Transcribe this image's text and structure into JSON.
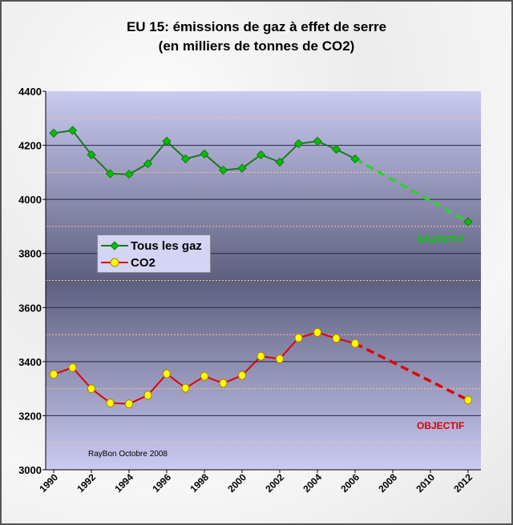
{
  "chart_data": {
    "type": "line",
    "title": "EU 15: émissions de gaz à effet de serre",
    "subtitle": "(en milliers de tonnes de CO2)",
    "ylim": [
      3000,
      4400
    ],
    "yticks": [
      3000,
      3200,
      3400,
      3600,
      3800,
      4000,
      4200,
      4400
    ],
    "xlim": [
      1990,
      2012
    ],
    "xticks": [
      1990,
      1992,
      1994,
      1996,
      1998,
      2000,
      2002,
      2004,
      2006,
      2008,
      2010,
      2012
    ],
    "series": [
      {
        "name": "Tous les gaz",
        "color": "#00c000",
        "line_color": "#1a7a1a",
        "x": [
          1990,
          1991,
          1992,
          1993,
          1994,
          1995,
          1996,
          1997,
          1998,
          1999,
          2000,
          2001,
          2002,
          2003,
          2004,
          2005,
          2006
        ],
        "values": [
          4245,
          4255,
          4165,
          4095,
          4093,
          4132,
          4215,
          4150,
          4168,
          4108,
          4115,
          4165,
          4138,
          4206,
          4215,
          4185,
          4150
        ],
        "target": {
          "x": 2012,
          "value": 3917,
          "label": "OBJECTIF"
        }
      },
      {
        "name": "CO2",
        "color": "#ffff00",
        "line_color": "#e00000",
        "x": [
          1990,
          1991,
          1992,
          1993,
          1994,
          1995,
          1996,
          1997,
          1998,
          1999,
          2000,
          2001,
          2002,
          2003,
          2004,
          2005,
          2006
        ],
        "values": [
          3353,
          3378,
          3300,
          3247,
          3244,
          3276,
          3355,
          3302,
          3346,
          3320,
          3349,
          3420,
          3410,
          3488,
          3508,
          3486,
          3467
        ],
        "target": {
          "x": 2012,
          "value": 3258,
          "label": "OBJECTIF"
        }
      }
    ],
    "legend": "center-left",
    "grid": true,
    "annotation": "RayBon Octobre 2008"
  }
}
